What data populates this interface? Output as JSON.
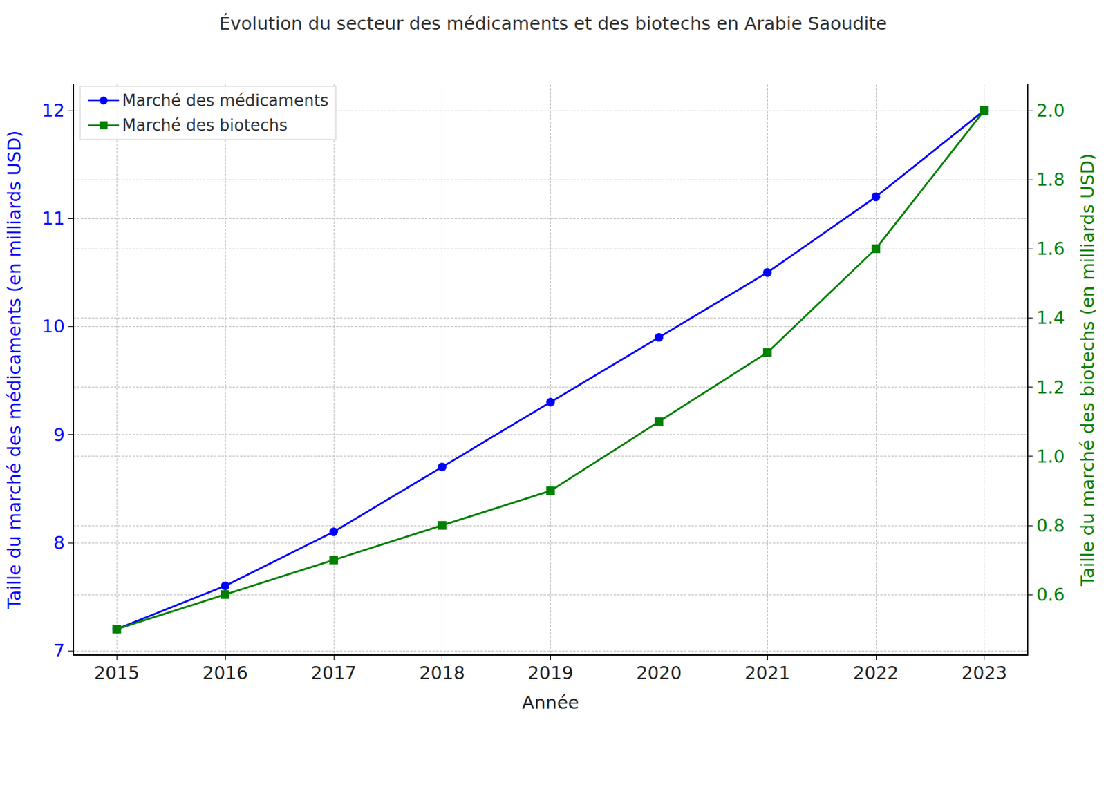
{
  "chart_data": {
    "type": "line",
    "title": "Évolution du secteur des médicaments et des biotechs en Arabie Saoudite",
    "xlabel": "Année",
    "ylabel": "Taille du marché des médicaments (en milliards USD)",
    "y2label": "Taille du marché des biotechs (en milliards USD)",
    "x": [
      2015,
      2016,
      2017,
      2018,
      2019,
      2020,
      2021,
      2022,
      2023
    ],
    "xlim": [
      2014.6,
      2023.4
    ],
    "xticks": [
      2015,
      2016,
      2017,
      2018,
      2019,
      2020,
      2021,
      2022,
      2023
    ],
    "ylim": [
      6.96,
      12.24
    ],
    "yticks": [
      7,
      8,
      9,
      10,
      11,
      12
    ],
    "y2lim": [
      0.425,
      2.075
    ],
    "y2ticks": [
      0.6,
      0.8,
      {
        "value": 1,
        "label": "1.0"
      },
      1.2,
      1.4,
      1.6,
      1.8,
      {
        "value": 2,
        "label": "2.0"
      }
    ],
    "grid": true,
    "legend": "upper left",
    "series": [
      {
        "name": "Marché des médicaments",
        "color": "#0000ff",
        "marker": "circle",
        "axis": "y",
        "values": [
          7.2,
          7.6,
          8.1,
          8.7,
          9.3,
          9.9,
          10.5,
          11.2,
          12.0
        ]
      },
      {
        "name": "Marché des biotechs",
        "color": "#008000",
        "marker": "square",
        "axis": "y2",
        "values": [
          0.5,
          0.6,
          0.7,
          0.8,
          0.9,
          1.1,
          1.3,
          1.6,
          2.0
        ]
      }
    ]
  }
}
